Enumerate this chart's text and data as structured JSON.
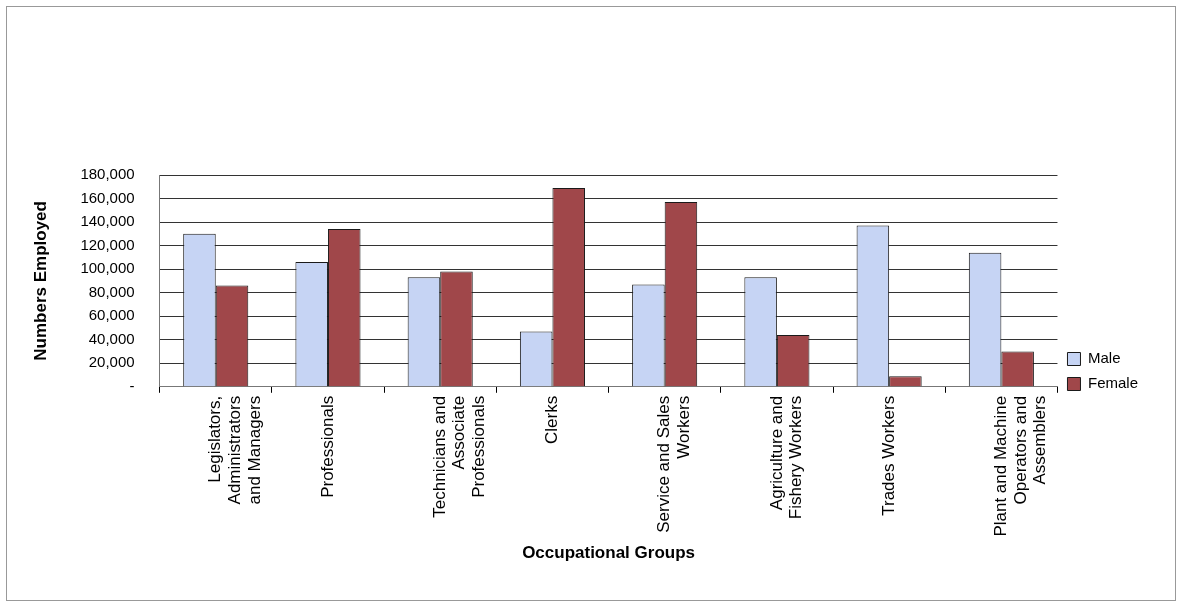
{
  "chart_data": {
    "type": "bar",
    "xlabel": "Occupational Groups",
    "ylabel": "Numbers Employed",
    "categories": [
      "Legislators, Administrators and Managers",
      "Professionals",
      "Technicians and Associate Professionals",
      "Clerks",
      "Service and Sales Workers",
      "Agriculture and Fishery Workers",
      "Trades Workers",
      "Plant and Machine Operators and Assemblers"
    ],
    "series": [
      {
        "name": "Male",
        "color": "#c6d4f4",
        "values": [
          130000,
          106000,
          93000,
          47000,
          87000,
          93000,
          137000,
          114000
        ]
      },
      {
        "name": "Female",
        "color": "#a0474a",
        "values": [
          86000,
          134000,
          98000,
          169000,
          157000,
          44000,
          9000,
          30000
        ]
      }
    ],
    "ylim": [
      0,
      180000
    ],
    "yticks": [
      {
        "value": 0,
        "label": "-"
      },
      {
        "value": 20000,
        "label": "20,000"
      },
      {
        "value": 40000,
        "label": "40,000"
      },
      {
        "value": 60000,
        "label": "60,000"
      },
      {
        "value": 80000,
        "label": "80,000"
      },
      {
        "value": 100000,
        "label": "100,000"
      },
      {
        "value": 120000,
        "label": "120,000"
      },
      {
        "value": 140000,
        "label": "140,000"
      },
      {
        "value": 160000,
        "label": "160,000"
      },
      {
        "value": 180000,
        "label": "180,000"
      }
    ],
    "grid": "y",
    "legend": "right"
  }
}
